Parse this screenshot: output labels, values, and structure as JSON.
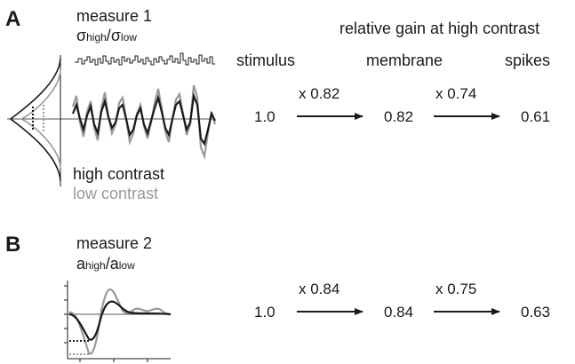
{
  "panelA": {
    "letter": "A",
    "measure": "measure 1",
    "ratio": {
      "sym1": "σ",
      "sub1": "high",
      "slash": "/",
      "sym2": "σ",
      "sub2": "low"
    },
    "header": "relative gain at high contrast",
    "stage_labels": [
      "stimulus",
      "membrane",
      "spikes"
    ],
    "values": [
      "1.0",
      "0.82",
      "0.61"
    ],
    "multipliers": [
      "x 0.82",
      "x 0.74"
    ],
    "legend_high": "high contrast",
    "legend_low": "low contrast"
  },
  "panelB": {
    "letter": "B",
    "measure": "measure 2",
    "ratio": {
      "sym1": "a",
      "sub1": "high",
      "slash": "/",
      "sym2": "a",
      "sub2": "low"
    },
    "values": [
      "1.0",
      "0.84",
      "0.63"
    ],
    "multipliers": [
      "x 0.84",
      "x 0.75"
    ]
  },
  "colors": {
    "high": "#1a1a1a",
    "low": "#999999"
  }
}
